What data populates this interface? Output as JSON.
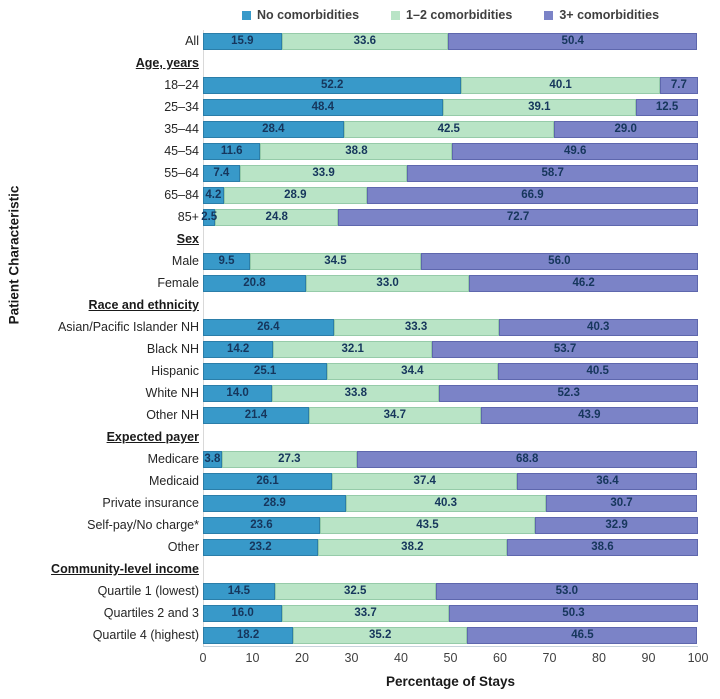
{
  "legend": {
    "items": [
      {
        "label": "No comorbidities",
        "color": "#3899C9",
        "border": "#2B7EA9"
      },
      {
        "label": "1–2 comorbidities",
        "color": "#B9E4C6",
        "border": "#96CBA9"
      },
      {
        "label": "3+ comorbidities",
        "color": "#7B83C7",
        "border": "#5E67AD"
      }
    ]
  },
  "chart_data": {
    "type": "bar",
    "orientation": "horizontal-stacked",
    "title": "",
    "xlabel": "Percentage of Stays",
    "ylabel": "Patient Characteristic",
    "xlim": [
      0,
      100
    ],
    "xticks": [
      0,
      10,
      20,
      30,
      40,
      50,
      60,
      70,
      80,
      90,
      100
    ],
    "grid": false,
    "legend_position": "top",
    "series_names": [
      "No comorbidities",
      "1–2 comorbidities",
      "3+ comorbidities"
    ],
    "value_label_decimals": 1,
    "rows": [
      {
        "kind": "bar",
        "label": "All",
        "values": [
          15.9,
          33.6,
          50.4
        ]
      },
      {
        "kind": "section",
        "label": "Age, years"
      },
      {
        "kind": "bar",
        "label": "18–24",
        "values": [
          52.2,
          40.1,
          7.7
        ]
      },
      {
        "kind": "bar",
        "label": "25–34",
        "values": [
          48.4,
          39.1,
          12.5
        ]
      },
      {
        "kind": "bar",
        "label": "35–44",
        "values": [
          28.4,
          42.5,
          29.0
        ]
      },
      {
        "kind": "bar",
        "label": "45–54",
        "values": [
          11.6,
          38.8,
          49.6
        ]
      },
      {
        "kind": "bar",
        "label": "55–64",
        "values": [
          7.4,
          33.9,
          58.7
        ]
      },
      {
        "kind": "bar",
        "label": "65–84",
        "values": [
          4.2,
          28.9,
          66.9
        ]
      },
      {
        "kind": "bar",
        "label": "85+",
        "values": [
          2.5,
          24.8,
          72.7
        ]
      },
      {
        "kind": "section",
        "label": "Sex"
      },
      {
        "kind": "bar",
        "label": "Male",
        "values": [
          9.5,
          34.5,
          56.0
        ]
      },
      {
        "kind": "bar",
        "label": "Female",
        "values": [
          20.8,
          33.0,
          46.2
        ]
      },
      {
        "kind": "section",
        "label": "Race and ethnicity"
      },
      {
        "kind": "bar",
        "label": "Asian/Pacific Islander NH",
        "values": [
          26.4,
          33.3,
          40.3
        ]
      },
      {
        "kind": "bar",
        "label": "Black NH",
        "values": [
          14.2,
          32.1,
          53.7
        ]
      },
      {
        "kind": "bar",
        "label": "Hispanic",
        "values": [
          25.1,
          34.4,
          40.5
        ]
      },
      {
        "kind": "bar",
        "label": "White NH",
        "values": [
          14.0,
          33.8,
          52.3
        ]
      },
      {
        "kind": "bar",
        "label": "Other NH",
        "values": [
          21.4,
          34.7,
          43.9
        ]
      },
      {
        "kind": "section",
        "label": "Expected payer"
      },
      {
        "kind": "bar",
        "label": "Medicare",
        "values": [
          3.8,
          27.3,
          68.8
        ]
      },
      {
        "kind": "bar",
        "label": "Medicaid",
        "values": [
          26.1,
          37.4,
          36.4
        ]
      },
      {
        "kind": "bar",
        "label": "Private insurance",
        "values": [
          28.9,
          40.3,
          30.7
        ]
      },
      {
        "kind": "bar",
        "label": "Self-pay/No charge*",
        "values": [
          23.6,
          43.5,
          32.9
        ]
      },
      {
        "kind": "bar",
        "label": "Other",
        "values": [
          23.2,
          38.2,
          38.6
        ]
      },
      {
        "kind": "section",
        "label": "Community-level income"
      },
      {
        "kind": "bar",
        "label": "Quartile 1 (lowest)",
        "values": [
          14.5,
          32.5,
          53.0
        ]
      },
      {
        "kind": "bar",
        "label": "Quartiles 2 and 3",
        "values": [
          16.0,
          33.7,
          50.3
        ]
      },
      {
        "kind": "bar",
        "label": "Quartile 4 (highest)",
        "values": [
          18.2,
          35.2,
          46.5
        ]
      }
    ]
  }
}
